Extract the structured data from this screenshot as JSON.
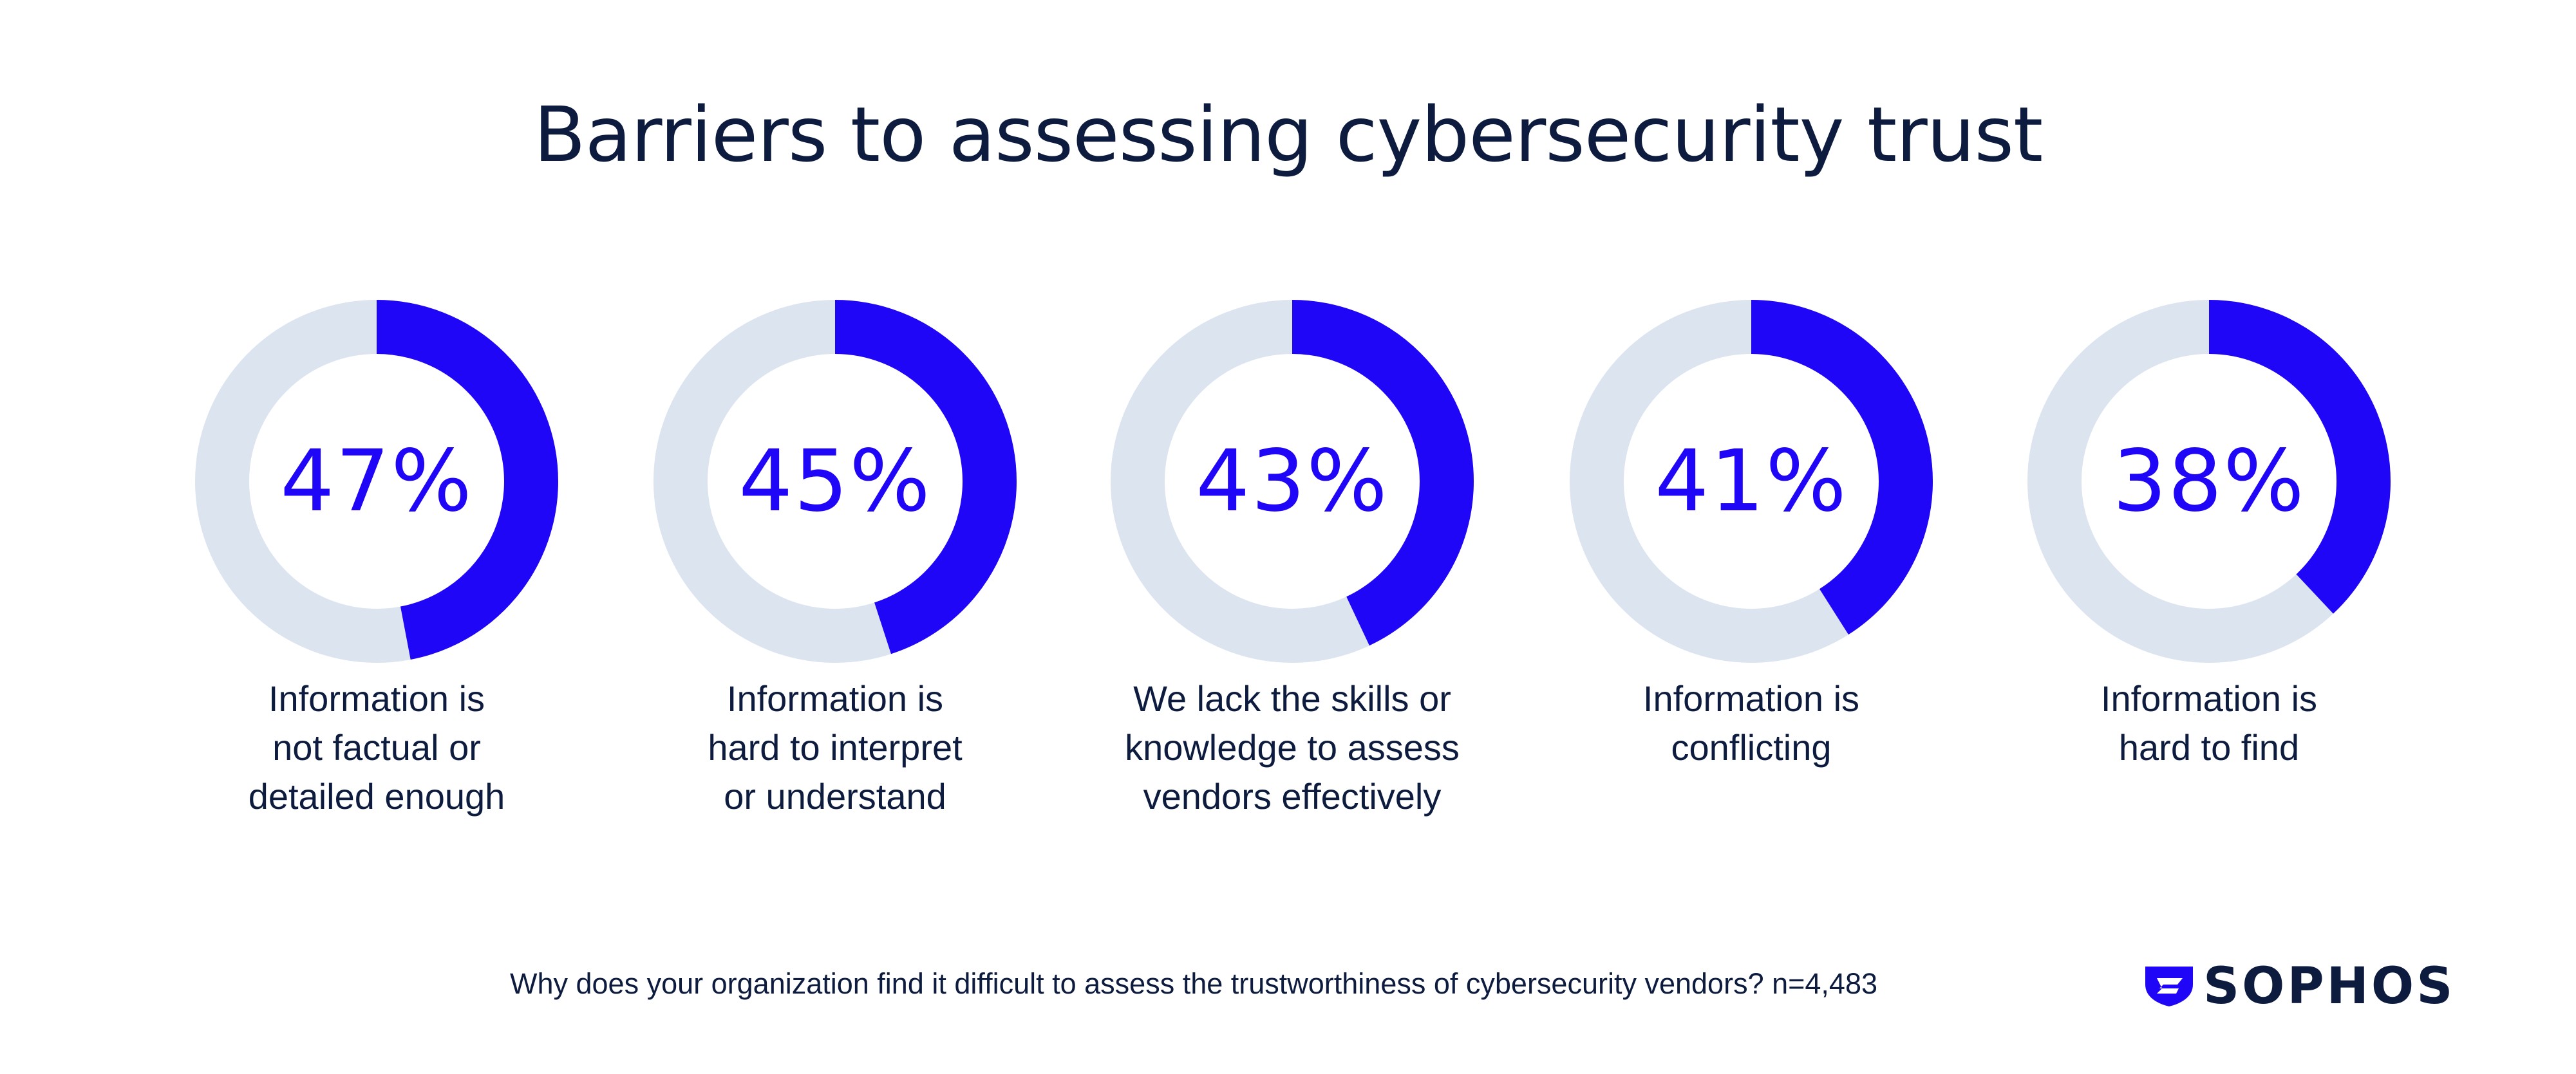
{
  "title": "Barriers to assessing cybersecurity trust",
  "footnote": "Why does your organization find it difficult to assess the trustworthiness of cybersecurity vendors? n=4,483",
  "logo": {
    "text": "SOPHOS",
    "icon": "sophos-shield-icon"
  },
  "colors": {
    "accent": "#2006f7",
    "track": "#dce4ef",
    "text": "#0d1b3e"
  },
  "chart_data": {
    "type": "donut",
    "title": "Barriers to assessing cybersecurity trust",
    "unit": "%",
    "categories": [
      "Information is not factual or detailed enough",
      "Information is hard to interpret or understand",
      "We lack the skills or knowledge to assess vendors effectively",
      "Information is conflicting",
      "Information is hard to find"
    ],
    "values": [
      47,
      45,
      43,
      41,
      38
    ],
    "items": [
      {
        "value": 47,
        "pct_label": "47%",
        "label_lines": [
          "Information is",
          "not factual or",
          "detailed enough"
        ]
      },
      {
        "value": 45,
        "pct_label": "45%",
        "label_lines": [
          "Information is",
          "hard to interpret",
          "or understand"
        ]
      },
      {
        "value": 43,
        "pct_label": "43%",
        "label_lines": [
          "We lack the skills or",
          "knowledge to assess",
          "vendors effectively"
        ]
      },
      {
        "value": 41,
        "pct_label": "41%",
        "label_lines": [
          "Information is",
          "conflicting"
        ]
      },
      {
        "value": 38,
        "pct_label": "38%",
        "label_lines": [
          "Information is",
          "hard to find"
        ]
      }
    ],
    "ylim": [
      0,
      100
    ]
  }
}
